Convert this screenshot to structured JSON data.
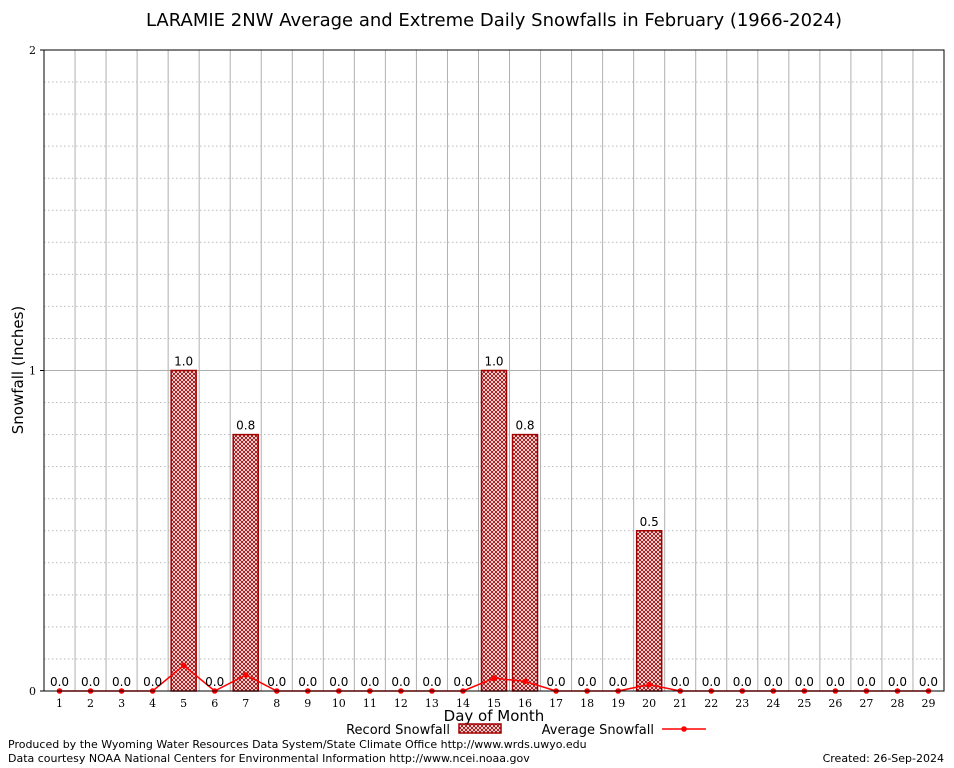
{
  "chart_data": {
    "type": "bar",
    "title": "LARAMIE 2NW Average and Extreme Daily Snowfalls in February (1966-2024)",
    "xlabel": "Day of Month",
    "ylabel": "Snowfall (Inches)",
    "ylim": [
      0,
      2
    ],
    "yticks": [
      "0",
      "1",
      "2"
    ],
    "grid": true,
    "categories": [
      "1",
      "2",
      "3",
      "4",
      "5",
      "6",
      "7",
      "8",
      "9",
      "10",
      "11",
      "12",
      "13",
      "14",
      "15",
      "16",
      "17",
      "18",
      "19",
      "20",
      "21",
      "22",
      "23",
      "24",
      "25",
      "26",
      "27",
      "28",
      "29"
    ],
    "series": [
      {
        "name": "Record Snowfall",
        "kind": "bar",
        "color": "#cc0000",
        "values": [
          0,
          0,
          0,
          0,
          1.0,
          0,
          0.8,
          0,
          0,
          0,
          0,
          0,
          0,
          0,
          1.0,
          0.8,
          0,
          0,
          0,
          0.5,
          0,
          0,
          0,
          0,
          0,
          0,
          0,
          0,
          0
        ],
        "labels": [
          "0.0",
          "0.0",
          "0.0",
          "0.0",
          "1.0",
          "0.0",
          "0.8",
          "0.0",
          "0.0",
          "0.0",
          "0.0",
          "0.0",
          "0.0",
          "0.0",
          "1.0",
          "0.8",
          "0.0",
          "0.0",
          "0.0",
          "0.5",
          "0.0",
          "0.0",
          "0.0",
          "0.0",
          "0.0",
          "0.0",
          "0.0",
          "0.0",
          "0.0"
        ]
      },
      {
        "name": "Average Snowfall",
        "kind": "line",
        "color": "#ff0000",
        "values": [
          0,
          0,
          0,
          0,
          0.08,
          0,
          0.05,
          0,
          0,
          0,
          0,
          0,
          0,
          0,
          0.04,
          0.03,
          0,
          0,
          0,
          0.02,
          0,
          0,
          0,
          0,
          0,
          0,
          0,
          0,
          0
        ]
      }
    ],
    "legend_position": "bottom-center"
  },
  "footer": {
    "credit1": "Produced by the Wyoming Water Resources Data System/State Climate Office http://www.wrds.uwyo.edu",
    "credit2": "Data courtesy NOAA National Centers for Environmental Information http://www.ncei.noaa.gov",
    "created": "Created:  26-Sep-2024"
  }
}
